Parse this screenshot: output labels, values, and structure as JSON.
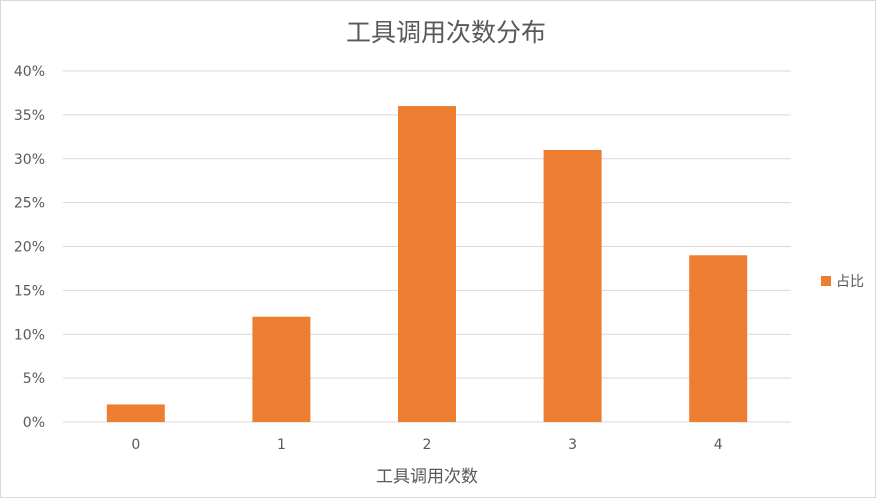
{
  "chart_data": {
    "type": "bar",
    "title": "工具调用次数分布",
    "xlabel": "工具调用次数",
    "ylabel": "",
    "categories": [
      "0",
      "1",
      "2",
      "3",
      "4"
    ],
    "series": [
      {
        "name": "占比",
        "values": [
          2,
          12,
          36,
          31,
          19
        ],
        "color": "#ED7D31"
      }
    ],
    "ylim": [
      0,
      40
    ],
    "yticks": [
      0,
      5,
      10,
      15,
      20,
      25,
      30,
      35,
      40
    ],
    "ytick_labels": [
      "0%",
      "5%",
      "10%",
      "15%",
      "20%",
      "25%",
      "30%",
      "35%",
      "40%"
    ],
    "grid": true,
    "legend": "right"
  }
}
